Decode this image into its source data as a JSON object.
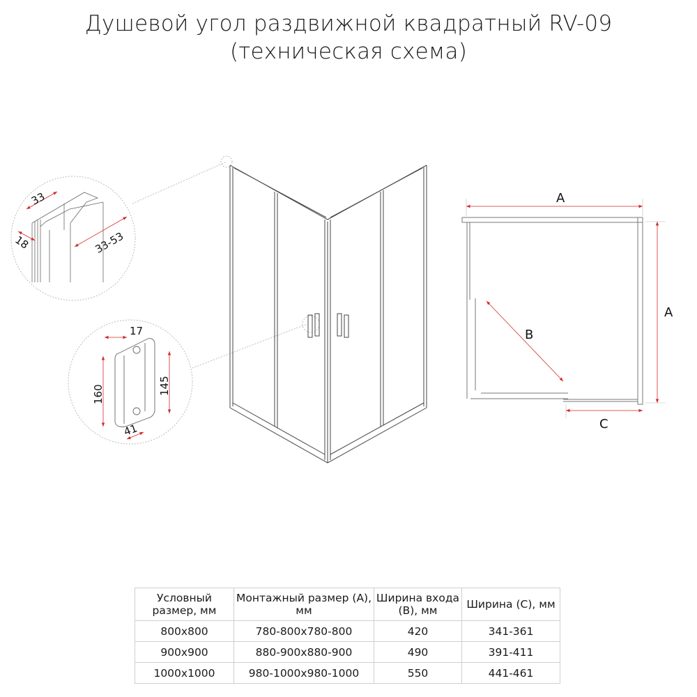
{
  "title": {
    "line1": "Душевой угол раздвижной квадратный RV-09",
    "line2": "(техническая схема)"
  },
  "profile_detail": {
    "dim_width": "33",
    "dim_depth": "18",
    "dim_adjust": "33-53"
  },
  "handle_detail": {
    "dim_thickness": "17",
    "dim_length": "160",
    "dim_spacing": "145",
    "dim_offset": "41"
  },
  "plan": {
    "label_a_top": "A",
    "label_a_side": "A",
    "label_b": "B",
    "label_c": "C"
  },
  "colors": {
    "dimension": "#d42a2a",
    "line": "#555555",
    "guide": "#bbbbbb"
  },
  "table": {
    "headers": [
      "Условный размер, мм",
      "Монтажный размер (A), мм",
      "Ширина входа (B), мм",
      "Ширина (C), мм"
    ],
    "rows": [
      [
        "800x800",
        "780-800x780-800",
        "420",
        "341-361"
      ],
      [
        "900x900",
        "880-900x880-900",
        "490",
        "391-411"
      ],
      [
        "1000x1000",
        "980-1000x980-1000",
        "550",
        "441-461"
      ]
    ]
  }
}
